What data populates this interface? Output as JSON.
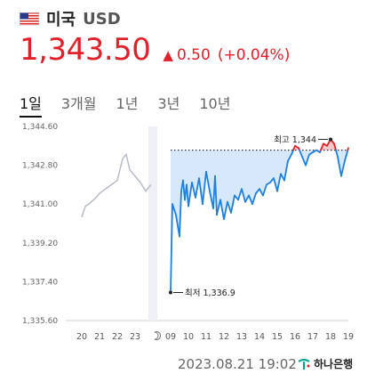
{
  "header": {
    "flag_icon": "us-flag-icon",
    "country": "미국",
    "currency": "USD"
  },
  "quote": {
    "price": "1,343.50",
    "direction_icon": "triangle-up-icon",
    "change": "0.50",
    "change_pct": "(+0.04%)",
    "color": "#e0202a"
  },
  "tabs": [
    {
      "label": "1일",
      "active": true
    },
    {
      "label": "3개월",
      "active": false
    },
    {
      "label": "1년",
      "active": false
    },
    {
      "label": "3년",
      "active": false
    },
    {
      "label": "10년",
      "active": false
    }
  ],
  "footer": {
    "timestamp": "2023.08.21 19:02",
    "bank": "하나은행",
    "bank_icon": "hana-bank-logo-icon"
  },
  "chart_data": {
    "type": "line",
    "y_ticks": [
      "1,344.60",
      "1,342.80",
      "1,341.00",
      "1,339.20",
      "1,337.40",
      "1,335.60"
    ],
    "ylim": [
      1335.6,
      1344.6
    ],
    "x_ticks": [
      "20",
      "21",
      "22",
      "23",
      "moon",
      "09",
      "10",
      "11",
      "12",
      "13",
      "14",
      "15",
      "16",
      "17",
      "18",
      "19"
    ],
    "moon_icon": "moon-icon",
    "reference_value": 1343.5,
    "previous_series": {
      "color": "#b8bcc8",
      "x": [
        20,
        20.2,
        20.4,
        20.8,
        21,
        21.5,
        22,
        22.3,
        22.5,
        22.7,
        23,
        23.3,
        23.6,
        23.9
      ],
      "y": [
        1340.4,
        1340.9,
        1341.0,
        1341.3,
        1341.5,
        1341.8,
        1342.1,
        1343.1,
        1343.3,
        1342.6,
        1342.3,
        1342.0,
        1341.6,
        1341.9
      ]
    },
    "today_series": {
      "above_color": "#e0202a",
      "below_color": "#1f7fe0",
      "x": [
        9.0,
        9.1,
        9.3,
        9.5,
        9.6,
        9.7,
        9.8,
        9.9,
        10.0,
        10.2,
        10.4,
        10.6,
        10.8,
        11.0,
        11.2,
        11.4,
        11.5,
        11.6,
        11.8,
        12.0,
        12.2,
        12.4,
        12.6,
        12.8,
        13.0,
        13.2,
        13.4,
        13.6,
        13.8,
        14.0,
        14.2,
        14.4,
        14.6,
        14.8,
        15.0,
        15.2,
        15.4,
        15.6,
        15.8,
        16.0,
        16.2,
        16.4,
        16.6,
        16.8,
        17.0,
        17.2,
        17.4,
        17.6,
        17.8,
        18.0,
        18.2,
        18.4,
        18.6,
        18.8,
        19.0
      ],
      "y": [
        1336.9,
        1341.0,
        1340.5,
        1339.5,
        1341.6,
        1342.1,
        1341.2,
        1341.9,
        1340.9,
        1342.0,
        1341.3,
        1342.2,
        1341.0,
        1342.5,
        1341.6,
        1340.8,
        1342.3,
        1340.5,
        1341.2,
        1340.3,
        1341.1,
        1340.6,
        1341.4,
        1341.2,
        1341.7,
        1341.1,
        1341.4,
        1341.0,
        1341.5,
        1341.7,
        1341.4,
        1341.9,
        1342.0,
        1342.2,
        1341.6,
        1342.4,
        1342.1,
        1343.0,
        1343.3,
        1343.7,
        1343.6,
        1343.2,
        1342.8,
        1343.3,
        1343.4,
        1343.5,
        1343.4,
        1343.8,
        1343.7,
        1344.0,
        1343.8,
        1343.2,
        1342.3,
        1343.0,
        1343.6
      ]
    },
    "annotations": {
      "high_label": "최고 1,344",
      "low_label": "최저 1,336.9"
    }
  }
}
